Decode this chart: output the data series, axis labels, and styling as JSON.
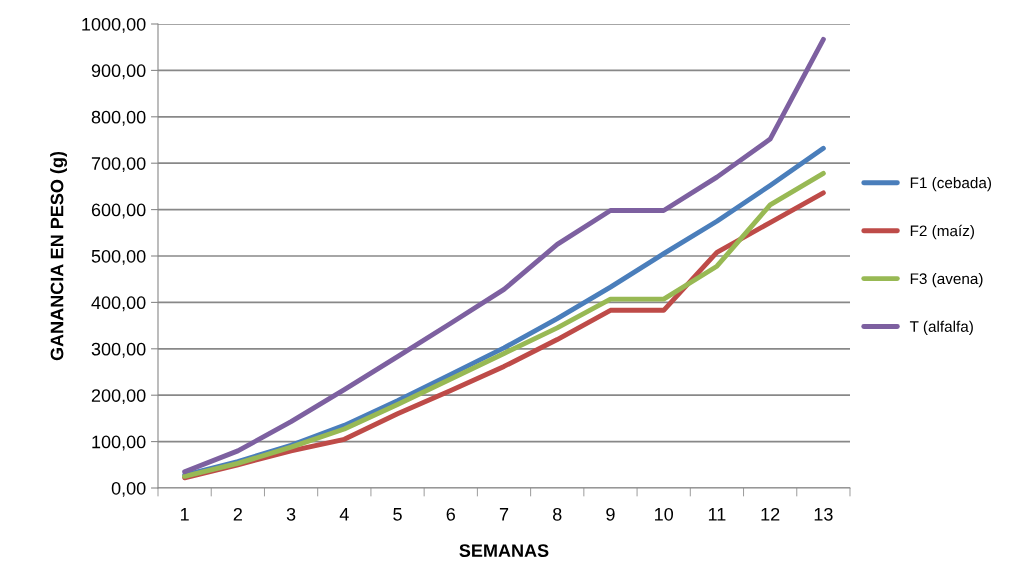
{
  "chart_data": {
    "type": "line",
    "xlabel": "SEMANAS",
    "ylabel": "GANANCIA EN PESO (g)",
    "categories": [
      "1",
      "2",
      "3",
      "4",
      "5",
      "6",
      "7",
      "8",
      "9",
      "10",
      "11",
      "12",
      "13"
    ],
    "series": [
      {
        "name": "F1 (cebada)",
        "color": "#4a7ebb",
        "values": [
          28,
          57,
          92,
          135,
          188,
          245,
          302,
          365,
          433,
          505,
          575,
          652,
          732
        ]
      },
      {
        "name": "F2 (maíz)",
        "color": "#be4b48",
        "values": [
          22,
          50,
          80,
          105,
          160,
          210,
          262,
          320,
          383,
          383,
          508,
          572,
          636
        ]
      },
      {
        "name": "F3 (avena)",
        "color": "#98b954",
        "values": [
          25,
          53,
          88,
          127,
          180,
          235,
          290,
          345,
          407,
          407,
          478,
          610,
          678
        ]
      },
      {
        "name": "T (alfalfa)",
        "color": "#7d60a0",
        "values": [
          35,
          80,
          143,
          212,
          283,
          355,
          428,
          525,
          598,
          598,
          670,
          752,
          967
        ]
      }
    ],
    "ylim": [
      0,
      1000
    ],
    "yticks": [
      {
        "value": 0,
        "label": "0,00"
      },
      {
        "value": 100,
        "label": "100,00"
      },
      {
        "value": 200,
        "label": "200,00"
      },
      {
        "value": 300,
        "label": "300,00"
      },
      {
        "value": 400,
        "label": "400,00"
      },
      {
        "value": 500,
        "label": "500,00"
      },
      {
        "value": 600,
        "label": "600,00"
      },
      {
        "value": 700,
        "label": "700,00"
      },
      {
        "value": 800,
        "label": "800,00"
      },
      {
        "value": 900,
        "label": "900,00"
      },
      {
        "value": 1000,
        "label": "1000,00"
      }
    ],
    "grid": "y",
    "legend": "right",
    "marker": "none",
    "line_style": "solid"
  }
}
